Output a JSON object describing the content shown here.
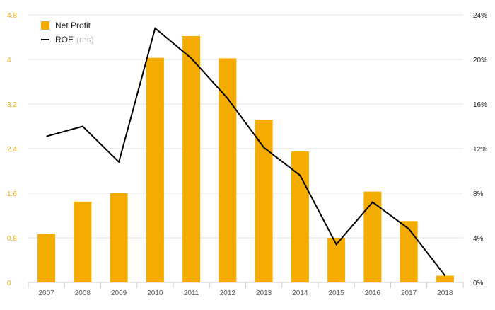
{
  "chart_data": {
    "type": "bar",
    "categories": [
      "2007",
      "2008",
      "2009",
      "2010",
      "2011",
      "2012",
      "2013",
      "2014",
      "2015",
      "2016",
      "2017",
      "2018"
    ],
    "series": [
      {
        "name": "Net Profit",
        "kind": "bar",
        "axis": "left",
        "values": [
          0.87,
          1.45,
          1.6,
          4.03,
          4.42,
          4.02,
          2.92,
          2.35,
          0.8,
          1.63,
          1.1,
          0.12
        ]
      },
      {
        "name": "ROE",
        "kind": "line",
        "axis": "right",
        "values": [
          13.1,
          14.0,
          10.8,
          22.8,
          20.1,
          16.5,
          12.1,
          9.6,
          3.4,
          7.2,
          4.8,
          0.6
        ]
      }
    ],
    "y_left": {
      "ticks": [
        "0",
        "0.8",
        "1.6",
        "2.4",
        "3.2",
        "4",
        "4.8"
      ],
      "tick_values": [
        0,
        0.8,
        1.6,
        2.4,
        3.2,
        4,
        4.8
      ],
      "ylim": [
        0,
        4.8
      ]
    },
    "y_right": {
      "ticks": [
        "0%",
        "4%",
        "8%",
        "12%",
        "16%",
        "20%",
        "24%"
      ],
      "tick_values": [
        0,
        4,
        8,
        12,
        16,
        20,
        24
      ],
      "ylim": [
        0,
        24
      ]
    },
    "grid": true,
    "legend": {
      "placement": "top-left",
      "bar_label": "Net Profit",
      "line_label": "ROE",
      "line_label_suffix": "(rhs)"
    },
    "colors": {
      "bar": "#f5ac00",
      "line": "#000000",
      "left_tick": "#f5ac00",
      "right_tick": "#222222",
      "grid": "#e6e6e6",
      "x_tick": "#555555"
    }
  }
}
